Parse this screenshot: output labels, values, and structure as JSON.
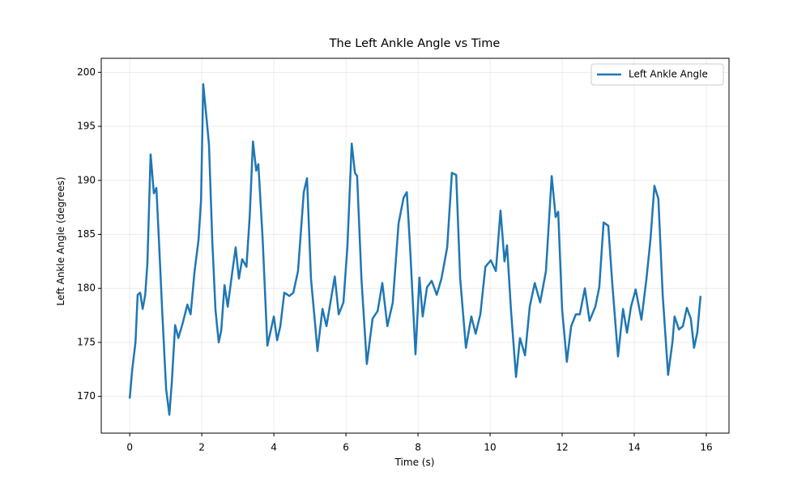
{
  "chart_data": {
    "type": "line",
    "title": "The Left Ankle Angle vs Time",
    "x_label": "Time (s)",
    "y_label": "Left Ankle Angle (degrees)",
    "x": [
      0,
      0.07,
      0.16,
      0.22,
      0.29,
      0.36,
      0.43,
      0.49,
      0.58,
      0.67,
      0.74,
      0.81,
      0.9,
      1.01,
      1.1,
      1.17,
      1.26,
      1.35,
      1.48,
      1.6,
      1.69,
      1.8,
      1.91,
      1.98,
      2.04,
      2.13,
      2.2,
      2.29,
      2.38,
      2.47,
      2.54,
      2.63,
      2.72,
      2.85,
      2.94,
      3.03,
      3.12,
      3.24,
      3.33,
      3.42,
      3.51,
      3.57,
      3.69,
      3.82,
      4,
      4.09,
      4.18,
      4.29,
      4.43,
      4.54,
      4.67,
      4.83,
      4.92,
      5.03,
      5.15,
      5.21,
      5.35,
      5.46,
      5.57,
      5.69,
      5.8,
      5.93,
      6.04,
      6.16,
      6.25,
      6.31,
      6.43,
      6.58,
      6.74,
      6.88,
      7.01,
      7.15,
      7.3,
      7.46,
      7.6,
      7.69,
      7.78,
      7.93,
      8.04,
      8.13,
      8.25,
      8.38,
      8.52,
      8.65,
      8.81,
      8.94,
      9.06,
      9.17,
      9.33,
      9.48,
      9.6,
      9.73,
      9.87,
      10.02,
      10.16,
      10.29,
      10.4,
      10.47,
      10.58,
      10.72,
      10.83,
      10.97,
      11.1,
      11.24,
      11.39,
      11.55,
      11.71,
      11.82,
      11.89,
      12,
      12.13,
      12.25,
      12.38,
      12.49,
      12.63,
      12.76,
      12.92,
      13.03,
      13.15,
      13.28,
      13.39,
      13.55,
      13.69,
      13.8,
      13.91,
      14.04,
      14.2,
      14.34,
      14.45,
      14.56,
      14.67,
      14.79,
      14.94,
      15.06,
      15.12,
      15.24,
      15.35,
      15.46,
      15.57,
      15.66,
      15.75,
      15.84
    ],
    "series": [
      {
        "name": "Left Ankle Angle",
        "color": "#1f77b4",
        "values": [
          169.8,
          172.5,
          175,
          179.4,
          179.6,
          178.1,
          179.4,
          182.3,
          192.4,
          188.8,
          189.3,
          184.5,
          178,
          170.7,
          168.3,
          171.4,
          176.6,
          175.4,
          176.9,
          178.5,
          177.6,
          181.6,
          184.5,
          188.2,
          198.9,
          195.8,
          193.3,
          184.5,
          178,
          175,
          176.1,
          180.3,
          178.3,
          181.6,
          183.8,
          180.9,
          182.7,
          182,
          186.7,
          193.6,
          190.9,
          191.5,
          184.5,
          174.7,
          177.4,
          175.2,
          176.5,
          179.6,
          179.3,
          179.6,
          181.6,
          188.9,
          190.2,
          180.9,
          176.5,
          174.2,
          178.1,
          176.5,
          178.7,
          181.1,
          177.6,
          178.7,
          183.8,
          193.4,
          190.7,
          190.4,
          180.9,
          173,
          177.2,
          177.9,
          180.5,
          176.5,
          178.7,
          186,
          188.4,
          188.9,
          183.8,
          173.9,
          181,
          177.4,
          180.1,
          180.7,
          179.4,
          180.9,
          183.8,
          190.7,
          190.5,
          180.9,
          174.5,
          177.4,
          175.8,
          177.6,
          182,
          182.6,
          181.6,
          187.2,
          182.5,
          184,
          178,
          171.8,
          175.4,
          173.8,
          178.3,
          180.5,
          178.7,
          181.6,
          190.4,
          186.6,
          187.1,
          178,
          173.2,
          176.5,
          177.6,
          177.6,
          180,
          177,
          178.3,
          180.1,
          186.1,
          185.8,
          180.5,
          173.7,
          178.1,
          175.9,
          178.3,
          179.9,
          177.1,
          180.9,
          184.5,
          189.5,
          188.3,
          179.4,
          172,
          175,
          177.4,
          176.2,
          176.5,
          178.2,
          177.2,
          174.5,
          175.9,
          179.3
        ]
      }
    ],
    "xlim": [
      -0.79,
      16.63
    ],
    "ylim": [
      166.6,
      201.3
    ],
    "xticks": [
      0,
      2,
      4,
      6,
      8,
      10,
      12,
      14,
      16
    ],
    "yticks": [
      170,
      175,
      180,
      185,
      190,
      195,
      200
    ],
    "grid": true,
    "legend": "upper right"
  }
}
